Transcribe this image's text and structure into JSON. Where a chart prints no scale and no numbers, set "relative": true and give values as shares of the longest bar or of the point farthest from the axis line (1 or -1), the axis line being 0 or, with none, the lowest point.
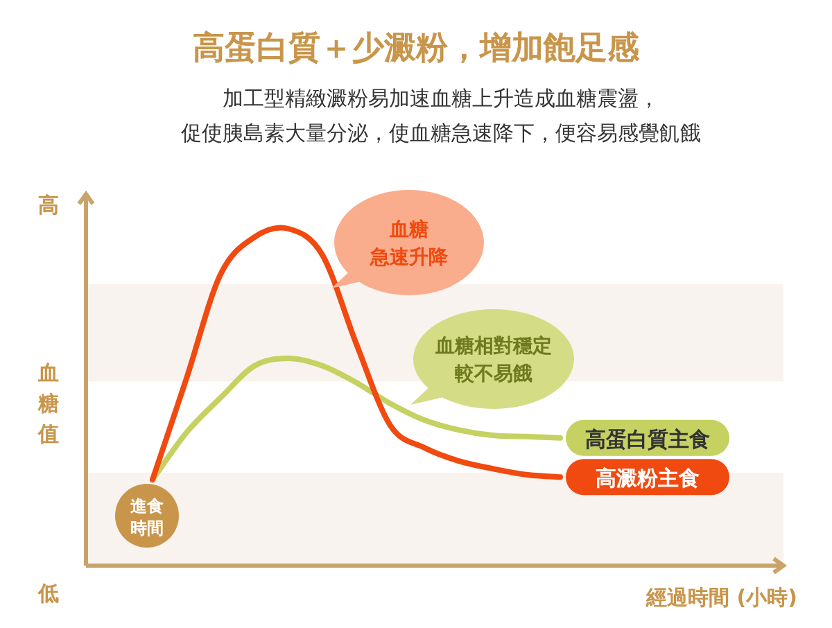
{
  "chart_data": {
    "type": "line",
    "relative": true,
    "title": "高蛋白質＋少澱粉，增加飽足感",
    "subtitle": "加工型精緻澱粉易加速血糖上升造成血糖震盪，",
    "ylabel": "血糖值",
    "xlabel": "經過時間 (小時)",
    "categories": [
      null,
      null,
      null,
      null,
      null,
      null,
      null,
      null,
      null,
      null,
      null,
      null,
      null
    ],
    "series": [
      {
        "name": "高蛋白質主食",
        "color": "#c5d161",
        "values": [
          0.255,
          0.395,
          0.498,
          0.593,
          0.615,
          0.593,
          0.543,
          0.481,
          0.432,
          0.403,
          0.387,
          0.383,
          0.379
        ]
      },
      {
        "name": "高澱粉主食",
        "color": "#f04a10",
        "values": [
          0.255,
          0.556,
          0.864,
          0.975,
          1.0,
          0.922,
          0.658,
          0.416,
          0.35,
          0.311,
          0.288,
          0.27,
          0.263
        ]
      }
    ],
    "bands": [
      {
        "axis": "y",
        "from": 0,
        "to": 0.276,
        "color": "#f8f3ee"
      },
      {
        "axis": "y",
        "from": 0.547,
        "to": 0.835,
        "color": "#f8f3ee"
      }
    ],
    "annotations": [
      "促使胰島素大量分泌，使血糖急速降下，便容易感覺飢餓",
      "高",
      "低",
      "血糖",
      "急速升降",
      "血糖相對穩定",
      "較不易餓",
      "進食",
      "時間"
    ],
    "grid": false,
    "legend": false,
    "marker": "none",
    "line_style": "solid"
  }
}
